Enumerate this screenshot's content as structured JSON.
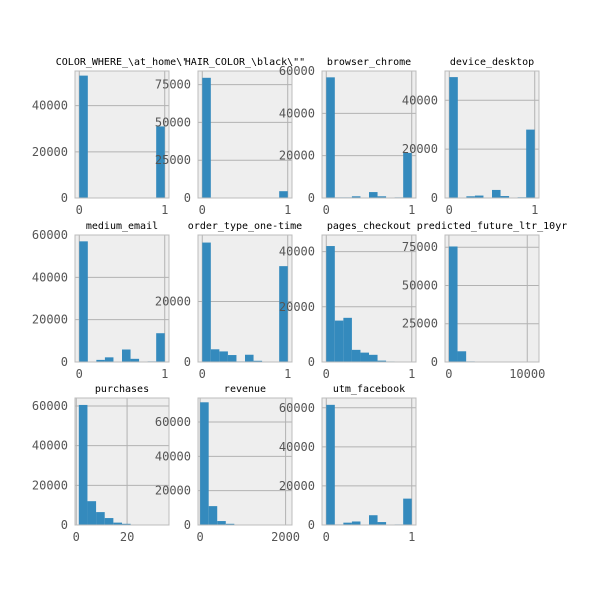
{
  "colors": {
    "figure_bg": "#ffffff",
    "axes_bg": "#eeeeee",
    "grid": "#b2b2b2",
    "spine": "#bcbcbc",
    "bar": "#348abd",
    "tick_text": "#555555",
    "title_text": "#000000"
  },
  "chart_data": [
    {
      "type": "bar",
      "title": "COLOR_WHERE_\\at_home\\\"",
      "xlim": [
        -0.05,
        1.05
      ],
      "ylim": [
        0,
        55000
      ],
      "xticks": [
        0,
        1
      ],
      "xtick_labels": [
        "0",
        "1"
      ],
      "yticks": [
        0,
        20000,
        40000
      ],
      "ytick_labels": [
        "0",
        "20000",
        "40000"
      ],
      "bins": [
        [
          0,
          0.1,
          53000
        ],
        [
          0.9,
          1.0,
          31000
        ]
      ]
    },
    {
      "type": "bar",
      "title": "HAIR_COLOR_\\black\\\"\"",
      "xlim": [
        -0.05,
        1.05
      ],
      "ylim": [
        0,
        84000
      ],
      "xticks": [
        0,
        1
      ],
      "xtick_labels": [
        "0",
        "1"
      ],
      "yticks": [
        0,
        25000,
        50000,
        75000
      ],
      "ytick_labels": [
        "0",
        "25000",
        "50000",
        "75000"
      ],
      "bins": [
        [
          0,
          0.1,
          79500
        ],
        [
          0.9,
          1.0,
          4500
        ]
      ]
    },
    {
      "type": "bar",
      "title": "browser_chrome",
      "xlim": [
        -0.05,
        1.05
      ],
      "ylim": [
        0,
        60000
      ],
      "xticks": [
        0,
        1
      ],
      "xtick_labels": [
        "0",
        "1"
      ],
      "yticks": [
        0,
        20000,
        40000,
        60000
      ],
      "ytick_labels": [
        "0",
        "20000",
        "40000",
        "60000"
      ],
      "bins": [
        [
          0,
          0.1,
          57000
        ],
        [
          0.1,
          0.2,
          300
        ],
        [
          0.2,
          0.3,
          300
        ],
        [
          0.3,
          0.4,
          800
        ],
        [
          0.4,
          0.5,
          200
        ],
        [
          0.5,
          0.6,
          2800
        ],
        [
          0.6,
          0.7,
          800
        ],
        [
          0.7,
          0.8,
          200
        ],
        [
          0.8,
          0.9,
          300
        ],
        [
          0.9,
          1.0,
          21300
        ]
      ]
    },
    {
      "type": "bar",
      "title": "device_desktop",
      "xlim": [
        -0.05,
        1.05
      ],
      "ylim": [
        0,
        52000
      ],
      "xticks": [
        0,
        1
      ],
      "xtick_labels": [
        "0",
        "1"
      ],
      "yticks": [
        0,
        20000,
        40000
      ],
      "ytick_labels": [
        "0",
        "20000",
        "40000"
      ],
      "bins": [
        [
          0,
          0.1,
          49500
        ],
        [
          0.1,
          0.2,
          200
        ],
        [
          0.2,
          0.3,
          700
        ],
        [
          0.3,
          0.4,
          1000
        ],
        [
          0.4,
          0.5,
          200
        ],
        [
          0.5,
          0.6,
          3300
        ],
        [
          0.6,
          0.7,
          800
        ],
        [
          0.7,
          0.8,
          200
        ],
        [
          0.8,
          0.9,
          300
        ],
        [
          0.9,
          1.0,
          28000
        ]
      ]
    },
    {
      "type": "bar",
      "title": "medium_email",
      "xlim": [
        -0.05,
        1.05
      ],
      "ylim": [
        0,
        60000
      ],
      "xticks": [
        0,
        1
      ],
      "xtick_labels": [
        "0",
        "1"
      ],
      "yticks": [
        0,
        20000,
        40000,
        60000
      ],
      "ytick_labels": [
        "0",
        "20000",
        "40000",
        "60000"
      ],
      "bins": [
        [
          0,
          0.1,
          57000
        ],
        [
          0.1,
          0.2,
          200
        ],
        [
          0.2,
          0.3,
          1000
        ],
        [
          0.3,
          0.4,
          2200
        ],
        [
          0.4,
          0.5,
          200
        ],
        [
          0.5,
          0.6,
          5900
        ],
        [
          0.6,
          0.7,
          1500
        ],
        [
          0.7,
          0.8,
          200
        ],
        [
          0.8,
          0.9,
          300
        ],
        [
          0.9,
          1.0,
          13600
        ]
      ]
    },
    {
      "type": "bar",
      "title": "order_type_one-time",
      "xlim": [
        -0.05,
        1.05
      ],
      "ylim": [
        0,
        42000
      ],
      "xticks": [
        0,
        1
      ],
      "xtick_labels": [
        "0",
        "1"
      ],
      "yticks": [
        0,
        20000
      ],
      "ytick_labels": [
        "0",
        "20000"
      ],
      "bins": [
        [
          0,
          0.1,
          39500
        ],
        [
          0.1,
          0.2,
          4200
        ],
        [
          0.2,
          0.3,
          3500
        ],
        [
          0.3,
          0.4,
          2300
        ],
        [
          0.4,
          0.5,
          200
        ],
        [
          0.5,
          0.6,
          2400
        ],
        [
          0.6,
          0.7,
          400
        ],
        [
          0.7,
          0.8,
          100
        ],
        [
          0.8,
          0.9,
          100
        ],
        [
          0.9,
          1.0,
          31700
        ]
      ]
    },
    {
      "type": "bar",
      "title": "pages_checkout",
      "xlim": [
        -0.05,
        1.05
      ],
      "ylim": [
        0,
        46000
      ],
      "xticks": [
        0,
        1
      ],
      "xtick_labels": [
        "0",
        "1"
      ],
      "yticks": [
        0,
        20000,
        40000
      ],
      "ytick_labels": [
        "0",
        "20000",
        "40000"
      ],
      "bins": [
        [
          0,
          0.1,
          42000
        ],
        [
          0.1,
          0.2,
          15000
        ],
        [
          0.2,
          0.3,
          16000
        ],
        [
          0.3,
          0.4,
          4400
        ],
        [
          0.4,
          0.5,
          3400
        ],
        [
          0.5,
          0.6,
          2600
        ],
        [
          0.6,
          0.7,
          500
        ],
        [
          0.7,
          0.8,
          200
        ],
        [
          0.8,
          0.9,
          100
        ],
        [
          0.9,
          1.0,
          50
        ]
      ]
    },
    {
      "type": "bar",
      "title": "predicted_future_ltr_10yr",
      "xlim": [
        -500,
        11500
      ],
      "ylim": [
        0,
        83000
      ],
      "xticks": [
        0,
        10000
      ],
      "xtick_labels": [
        "0",
        "10000"
      ],
      "yticks": [
        0,
        25000,
        50000,
        75000
      ],
      "ytick_labels": [
        "0",
        "25000",
        "50000",
        "75000"
      ],
      "bins": [
        [
          0,
          1100,
          75500
        ],
        [
          1100,
          2200,
          7000
        ],
        [
          2200,
          3300,
          400
        ],
        [
          3300,
          4400,
          100
        ],
        [
          4400,
          5500,
          50
        ],
        [
          5500,
          6600,
          20
        ],
        [
          6600,
          7700,
          10
        ],
        [
          7700,
          8800,
          10
        ],
        [
          8800,
          9900,
          5
        ],
        [
          9900,
          11000,
          5
        ]
      ]
    },
    {
      "type": "bar",
      "title": "purchases",
      "xlim": [
        -0.5,
        36.5
      ],
      "ylim": [
        0,
        64000
      ],
      "xticks": [
        0,
        20
      ],
      "xtick_labels": [
        "0",
        "20"
      ],
      "yticks": [
        0,
        20000,
        40000,
        60000
      ],
      "ytick_labels": [
        "0",
        "20000",
        "40000",
        "60000"
      ],
      "bins": [
        [
          1,
          4.4,
          60500
        ],
        [
          4.4,
          7.8,
          12000
        ],
        [
          7.8,
          11.2,
          6500
        ],
        [
          11.2,
          14.6,
          3500
        ],
        [
          14.6,
          18,
          1200
        ],
        [
          18,
          21.4,
          600
        ],
        [
          21.4,
          24.8,
          200
        ],
        [
          24.8,
          28.2,
          100
        ],
        [
          28.2,
          31.6,
          50
        ],
        [
          31.6,
          35,
          20
        ]
      ]
    },
    {
      "type": "bar",
      "title": "revenue",
      "xlim": [
        -50,
        2150
      ],
      "ylim": [
        0,
        74000
      ],
      "xticks": [
        0,
        2000
      ],
      "xtick_labels": [
        "0",
        "2000"
      ],
      "yticks": [
        0,
        20000,
        40000,
        60000
      ],
      "ytick_labels": [
        "0",
        "20000",
        "40000",
        "60000"
      ],
      "bins": [
        [
          0,
          200,
          71500
        ],
        [
          200,
          400,
          11000
        ],
        [
          400,
          600,
          2300
        ],
        [
          600,
          800,
          700
        ],
        [
          800,
          1000,
          200
        ],
        [
          1000,
          1200,
          100
        ],
        [
          1200,
          1400,
          50
        ],
        [
          1400,
          1600,
          20
        ],
        [
          1600,
          1800,
          10
        ],
        [
          1800,
          2000,
          5
        ]
      ]
    },
    {
      "type": "bar",
      "title": "utm_facebook",
      "xlim": [
        -0.05,
        1.05
      ],
      "ylim": [
        0,
        65000
      ],
      "xticks": [
        0,
        1
      ],
      "xtick_labels": [
        "0",
        "1"
      ],
      "yticks": [
        0,
        20000,
        40000,
        60000
      ],
      "ytick_labels": [
        "0",
        "20000",
        "40000",
        "60000"
      ],
      "bins": [
        [
          0,
          0.1,
          61500
        ],
        [
          0.1,
          0.2,
          300
        ],
        [
          0.2,
          0.3,
          1200
        ],
        [
          0.3,
          0.4,
          1800
        ],
        [
          0.4,
          0.5,
          200
        ],
        [
          0.5,
          0.6,
          5000
        ],
        [
          0.6,
          0.7,
          1500
        ],
        [
          0.7,
          0.8,
          200
        ],
        [
          0.8,
          0.9,
          300
        ],
        [
          0.9,
          1.0,
          13500
        ]
      ]
    }
  ]
}
